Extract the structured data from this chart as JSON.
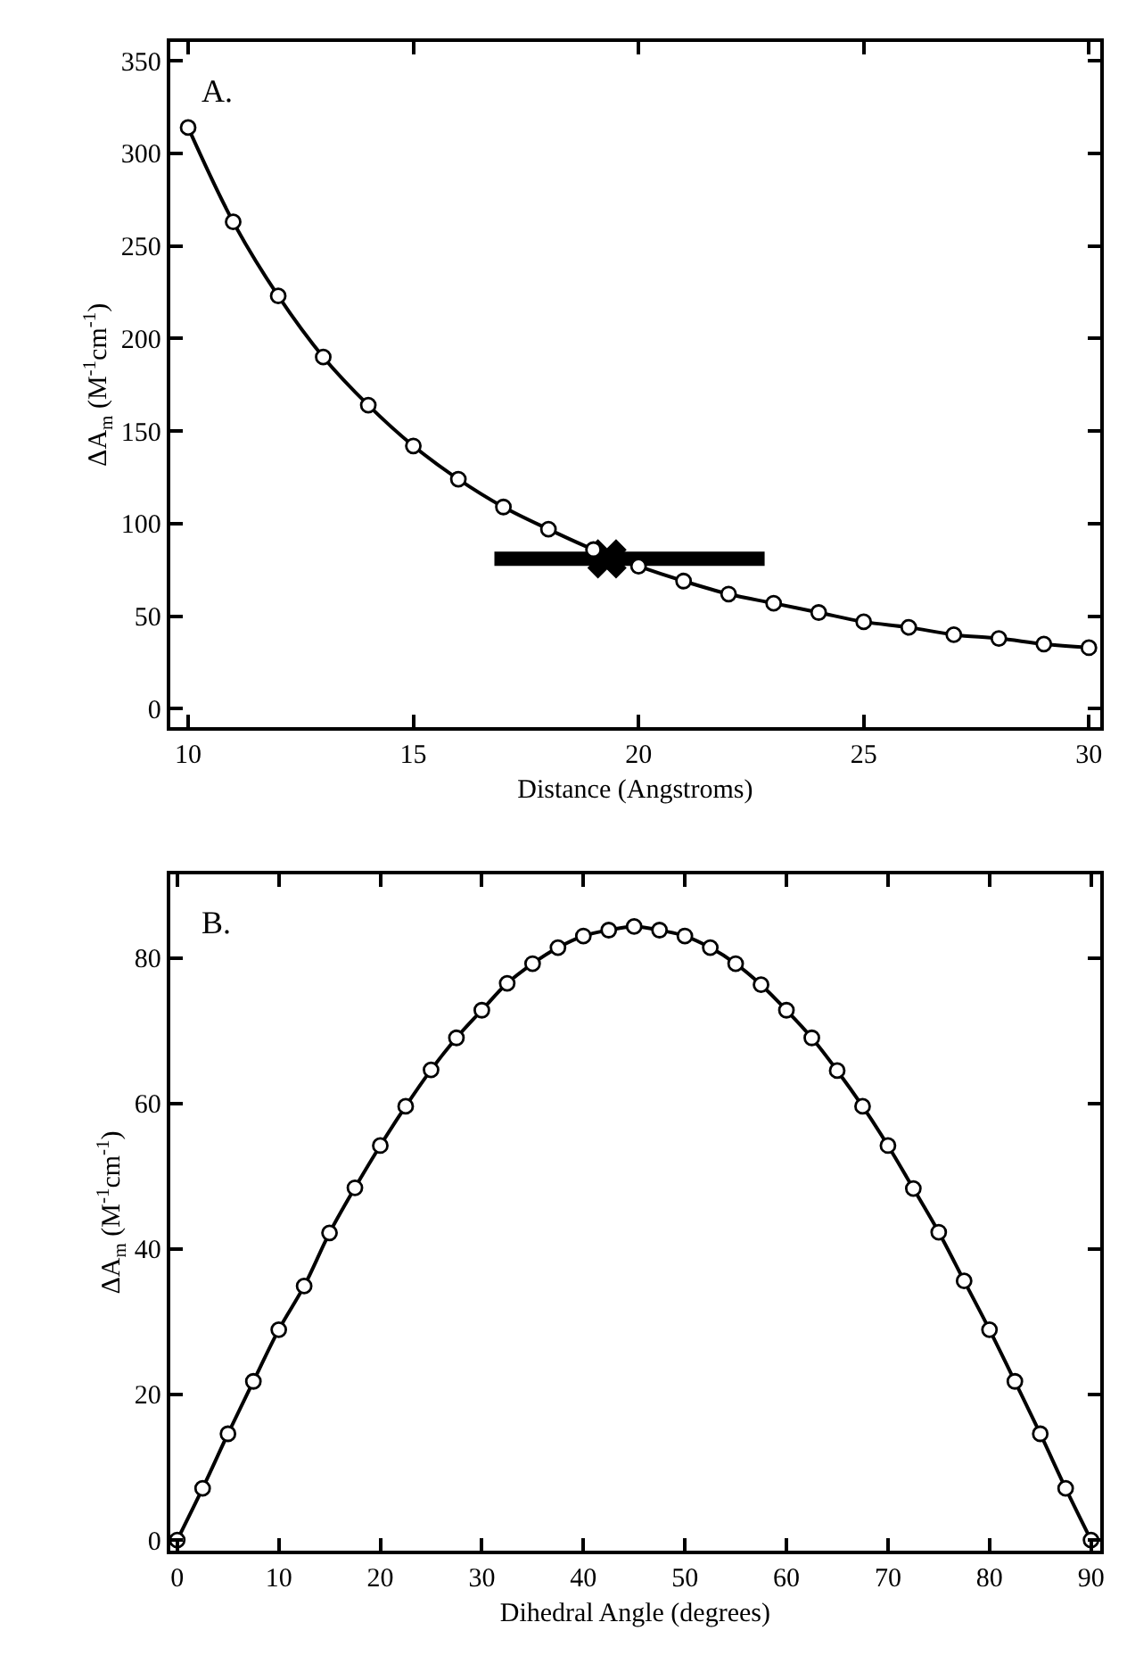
{
  "chart_data": [
    {
      "type": "line",
      "xlabel": "Distance (Angstroms)",
      "ylabel": "ΔA$_{m}$ (M$^{-1}$cm$^{-1}$)",
      "annotations": [
        "A."
      ],
      "xlim": [
        9.6,
        30.25
      ],
      "xticks": [
        10,
        15,
        20,
        25,
        30
      ],
      "ylim": [
        -10,
        360
      ],
      "yticks": [
        0,
        50,
        100,
        150,
        200,
        250,
        300,
        350
      ],
      "marker": "circle",
      "line_style": "solid",
      "series": [
        {
          "type": "scatter",
          "marker": "cross",
          "color": "#000000",
          "x": [
            19.3
          ],
          "values": [
            81
          ],
          "xerrors": [
            [
              16.8,
              22.8
            ]
          ]
        },
        {
          "color": "#000000",
          "x": [
            10,
            11,
            12,
            13,
            14,
            15,
            16,
            17,
            18,
            19,
            20,
            21,
            22,
            23,
            24,
            25,
            26,
            27,
            28,
            29,
            30
          ],
          "values": [
            314,
            263,
            223,
            190,
            164,
            142,
            124,
            109,
            97,
            86,
            77,
            69,
            62,
            57,
            52,
            47,
            44,
            40,
            38,
            35,
            33
          ]
        }
      ]
    },
    {
      "type": "line",
      "xlabel": "Dihedral Angle (degrees)",
      "ylabel": "ΔA$_{m}$ (M$^{-1}$cm$^{-1}$)",
      "annotations": [
        "B."
      ],
      "xlim": [
        -0.7,
        90.9
      ],
      "xticks": [
        0,
        10,
        20,
        30,
        40,
        50,
        60,
        70,
        80,
        90
      ],
      "ylim": [
        -1.5,
        91.5
      ],
      "yticks": [
        0,
        20,
        40,
        60,
        80
      ],
      "marker": "circle",
      "line_style": "solid",
      "series": [
        {
          "color": "#000000",
          "x": [
            0,
            2.5,
            5,
            7.5,
            10,
            12.5,
            15,
            17.5,
            20,
            22.5,
            25,
            27.5,
            30,
            32.5,
            35,
            37.5,
            40,
            42.5,
            45,
            47.5,
            50,
            52.5,
            55,
            57.5,
            60,
            62.5,
            65,
            67.5,
            70,
            72.5,
            75,
            77.5,
            80,
            82.5,
            85,
            87.5,
            90
          ],
          "values": [
            0,
            7.1,
            14.6,
            21.8,
            28.9,
            34.9,
            42.2,
            48.4,
            54.2,
            59.6,
            64.6,
            69,
            72.8,
            76.5,
            79.2,
            81.4,
            83,
            83.8,
            84.3,
            83.8,
            83,
            81.4,
            79.2,
            76.3,
            72.8,
            69,
            64.5,
            59.6,
            54.2,
            48.3,
            42.3,
            35.6,
            28.9,
            21.8,
            14.6,
            7.1,
            0
          ]
        }
      ]
    }
  ]
}
